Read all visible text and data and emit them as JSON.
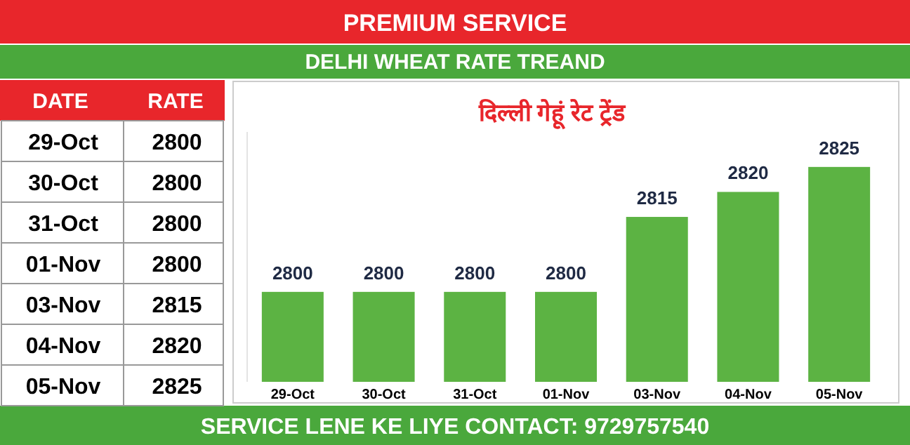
{
  "chart_data": {
    "type": "bar",
    "title": "दिल्ली गेहूं रेट ट्रेंड",
    "subtitle": "DELHI WHEAT RATE TREAND",
    "categories": [
      "29-Oct",
      "30-Oct",
      "31-Oct",
      "01-Nov",
      "03-Nov",
      "04-Nov",
      "05-Nov"
    ],
    "values": [
      2800,
      2800,
      2800,
      2800,
      2815,
      2820,
      2825
    ],
    "color": "#5cb343",
    "ylim": [
      2782,
      2832
    ],
    "data_labels": true,
    "annotations": [
      "PREMIUM SERVICE",
      "DATE",
      "RATE",
      "SERVICE LENE KE LIYE CONTACT: 9729757540",
      "2800",
      "2800",
      "2800",
      "2800",
      "2815",
      "2820",
      "2825"
    ]
  }
}
